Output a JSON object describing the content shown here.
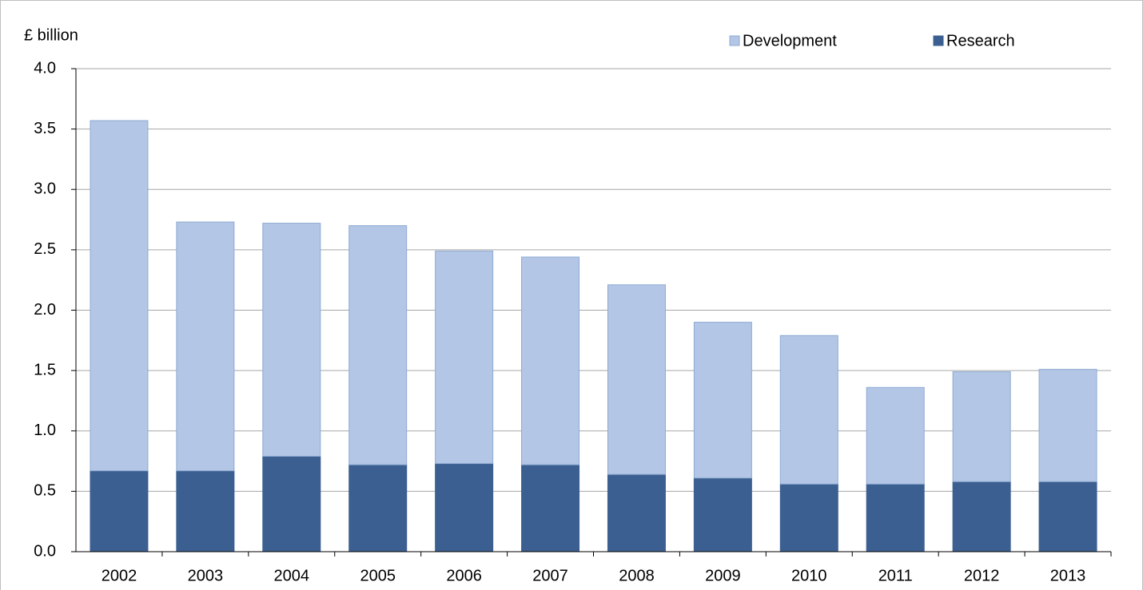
{
  "chart_data": {
    "type": "stacked-bar",
    "y_label": "£ billion",
    "categories": [
      "2002",
      "2003",
      "2004",
      "2005",
      "2006",
      "2007",
      "2008",
      "2009",
      "2010",
      "2011",
      "2012",
      "2013"
    ],
    "series": [
      {
        "name": "Research",
        "color": "#3c5f91",
        "values": [
          0.67,
          0.67,
          0.79,
          0.72,
          0.73,
          0.72,
          0.64,
          0.61,
          0.56,
          0.56,
          0.58,
          0.58
        ]
      },
      {
        "name": "Development",
        "color": "#b3c6e5",
        "values": [
          2.9,
          2.06,
          1.93,
          1.98,
          1.76,
          1.72,
          1.57,
          1.29,
          1.23,
          0.8,
          0.91,
          0.93
        ]
      }
    ],
    "ylim": [
      0,
      4
    ],
    "yticks": [
      {
        "value": 0,
        "label": "0.0"
      },
      0.5,
      {
        "value": 1,
        "label": "1.0"
      },
      1.5,
      {
        "value": 2,
        "label": "2.0"
      },
      2.5,
      {
        "value": 3,
        "label": "3.0"
      },
      3.5,
      {
        "value": 4,
        "label": "4.0"
      }
    ],
    "grid": true
  }
}
